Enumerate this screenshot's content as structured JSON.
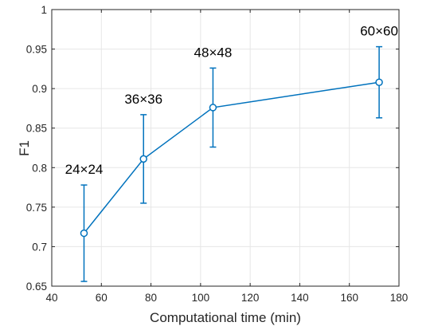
{
  "chart_data": {
    "type": "line",
    "title": "",
    "xlabel": "Computational time (min)",
    "ylabel": "F1",
    "xlim": [
      40,
      180
    ],
    "ylim": [
      0.65,
      1.0
    ],
    "xticks": [
      "40",
      "60",
      "80",
      "100",
      "120",
      "140",
      "160",
      "180"
    ],
    "yticks": [
      "0.65",
      "0.7",
      "0.75",
      "0.8",
      "0.85",
      "0.9",
      "0.95",
      "1"
    ],
    "grid": true,
    "series": [
      {
        "x": [
          53,
          77,
          105,
          172
        ],
        "y": [
          0.717,
          0.811,
          0.876,
          0.908
        ],
        "error_low": [
          0.656,
          0.755,
          0.826,
          0.863
        ],
        "error_high": [
          0.778,
          0.867,
          0.926,
          0.953
        ],
        "labels": [
          "24×24",
          "36×36",
          "48×48",
          "60×60"
        ]
      }
    ]
  },
  "colors": {
    "series": "#0072BD",
    "axis": "#262626",
    "grid": "#e6e6e6"
  }
}
